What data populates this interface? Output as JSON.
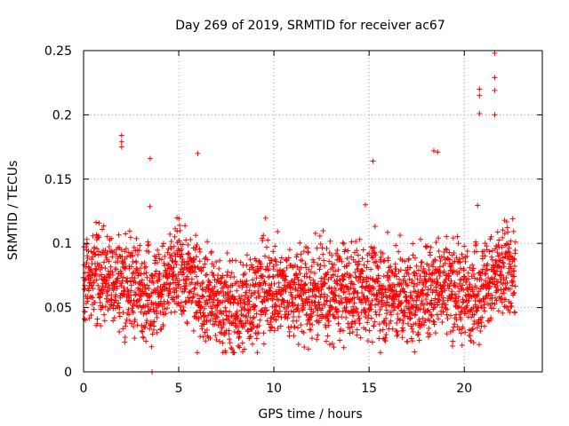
{
  "chart_data": {
    "type": "scatter",
    "title": "Day 269 of 2019, SRMTID for receiver ac67",
    "xlabel": "GPS time / hours",
    "ylabel": "SRMTID / TECUs",
    "xlim": [
      0,
      24.1
    ],
    "ylim": [
      0,
      0.25
    ],
    "xticks": [
      0,
      5,
      10,
      15,
      20
    ],
    "xtick_labels": [
      "0",
      "5",
      "10",
      "15",
      "20"
    ],
    "yticks": [
      0,
      0.05,
      0.1,
      0.15,
      0.2,
      0.25
    ],
    "ytick_labels": [
      "0",
      "0.05",
      "0.1",
      "0.15",
      "0.2",
      "0.25"
    ],
    "grid": true,
    "marker": "+",
    "color": "#ff0000",
    "series": [
      {
        "name": "SRMTID ac67",
        "x_range_hours": [
          0,
          22.7
        ],
        "sample_interval_hours": 0.0083,
        "typical_min": 0.02,
        "typical_max": 0.11,
        "median_by_hour": [
          [
            0,
            0.07
          ],
          [
            1,
            0.075
          ],
          [
            2,
            0.07
          ],
          [
            3,
            0.065
          ],
          [
            4,
            0.06
          ],
          [
            5,
            0.08
          ],
          [
            6,
            0.065
          ],
          [
            7,
            0.055
          ],
          [
            8,
            0.045
          ],
          [
            9,
            0.06
          ],
          [
            10,
            0.065
          ],
          [
            11,
            0.06
          ],
          [
            12,
            0.06
          ],
          [
            13,
            0.06
          ],
          [
            14,
            0.06
          ],
          [
            15,
            0.065
          ],
          [
            16,
            0.06
          ],
          [
            17,
            0.055
          ],
          [
            18,
            0.06
          ],
          [
            19,
            0.07
          ],
          [
            20,
            0.06
          ],
          [
            21,
            0.065
          ],
          [
            22,
            0.075
          ]
        ],
        "notable_points": [
          {
            "x": 2.0,
            "y": 0.184
          },
          {
            "x": 2.0,
            "y": 0.179
          },
          {
            "x": 2.0,
            "y": 0.175
          },
          {
            "x": 3.5,
            "y": 0.166
          },
          {
            "x": 3.6,
            "y": 0.0
          },
          {
            "x": 6.0,
            "y": 0.17
          },
          {
            "x": 15.2,
            "y": 0.164
          },
          {
            "x": 18.4,
            "y": 0.172
          },
          {
            "x": 18.6,
            "y": 0.171
          },
          {
            "x": 20.8,
            "y": 0.22
          },
          {
            "x": 20.8,
            "y": 0.215
          },
          {
            "x": 20.8,
            "y": 0.201
          },
          {
            "x": 21.6,
            "y": 0.248
          },
          {
            "x": 21.6,
            "y": 0.229
          },
          {
            "x": 21.6,
            "y": 0.219
          },
          {
            "x": 21.6,
            "y": 0.2
          }
        ]
      }
    ]
  }
}
